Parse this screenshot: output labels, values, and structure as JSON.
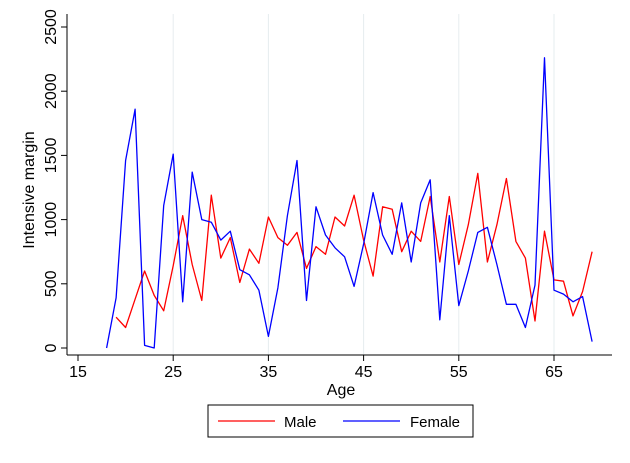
{
  "chart_data": {
    "type": "line",
    "title": "",
    "xlabel": "Age",
    "ylabel": "Intensive margin",
    "xlim": [
      15,
      70
    ],
    "ylim": [
      0,
      2500
    ],
    "xticks": [
      15,
      25,
      35,
      45,
      55,
      65
    ],
    "yticks": [
      0,
      500,
      1000,
      1500,
      2000,
      2500
    ],
    "grid": "vertical",
    "legend_position": "bottom",
    "series": [
      {
        "name": "Male",
        "color": "#ff0000",
        "x": [
          19,
          20,
          21,
          22,
          23,
          24,
          25,
          26,
          27,
          28,
          29,
          30,
          31,
          32,
          33,
          34,
          35,
          36,
          37,
          38,
          39,
          40,
          41,
          42,
          43,
          44,
          45,
          46,
          47,
          48,
          49,
          50,
          51,
          52,
          53,
          54,
          55,
          56,
          57,
          58,
          59,
          60,
          61,
          62,
          63,
          64,
          65,
          66,
          67,
          68,
          69
        ],
        "y": [
          240,
          160,
          380,
          600,
          410,
          290,
          640,
          1030,
          650,
          370,
          1190,
          700,
          860,
          510,
          770,
          660,
          1020,
          860,
          800,
          900,
          620,
          790,
          730,
          1020,
          950,
          1190,
          840,
          560,
          1100,
          1080,
          750,
          910,
          830,
          1180,
          670,
          1180,
          650,
          960,
          1360,
          670,
          960,
          1320,
          830,
          700,
          210,
          910,
          530,
          520,
          250,
          440,
          750
        ]
      },
      {
        "name": "Female",
        "color": "#0000ff",
        "x": [
          18,
          19,
          20,
          21,
          22,
          23,
          24,
          25,
          26,
          27,
          28,
          29,
          30,
          31,
          32,
          33,
          34,
          35,
          36,
          37,
          38,
          39,
          40,
          41,
          42,
          43,
          44,
          45,
          46,
          47,
          48,
          49,
          50,
          51,
          52,
          53,
          54,
          55,
          56,
          57,
          58,
          59,
          60,
          61,
          62,
          63,
          64,
          65,
          66,
          67,
          68,
          69
        ],
        "y": [
          0,
          390,
          1460,
          1860,
          20,
          0,
          1110,
          1510,
          360,
          1370,
          1000,
          980,
          840,
          910,
          610,
          570,
          450,
          90,
          470,
          1030,
          1460,
          370,
          1100,
          880,
          780,
          710,
          480,
          810,
          1210,
          880,
          730,
          1130,
          670,
          1130,
          1310,
          220,
          1030,
          330,
          600,
          900,
          940,
          650,
          340,
          340,
          160,
          490,
          2260,
          450,
          420,
          360,
          400,
          50
        ]
      }
    ]
  }
}
